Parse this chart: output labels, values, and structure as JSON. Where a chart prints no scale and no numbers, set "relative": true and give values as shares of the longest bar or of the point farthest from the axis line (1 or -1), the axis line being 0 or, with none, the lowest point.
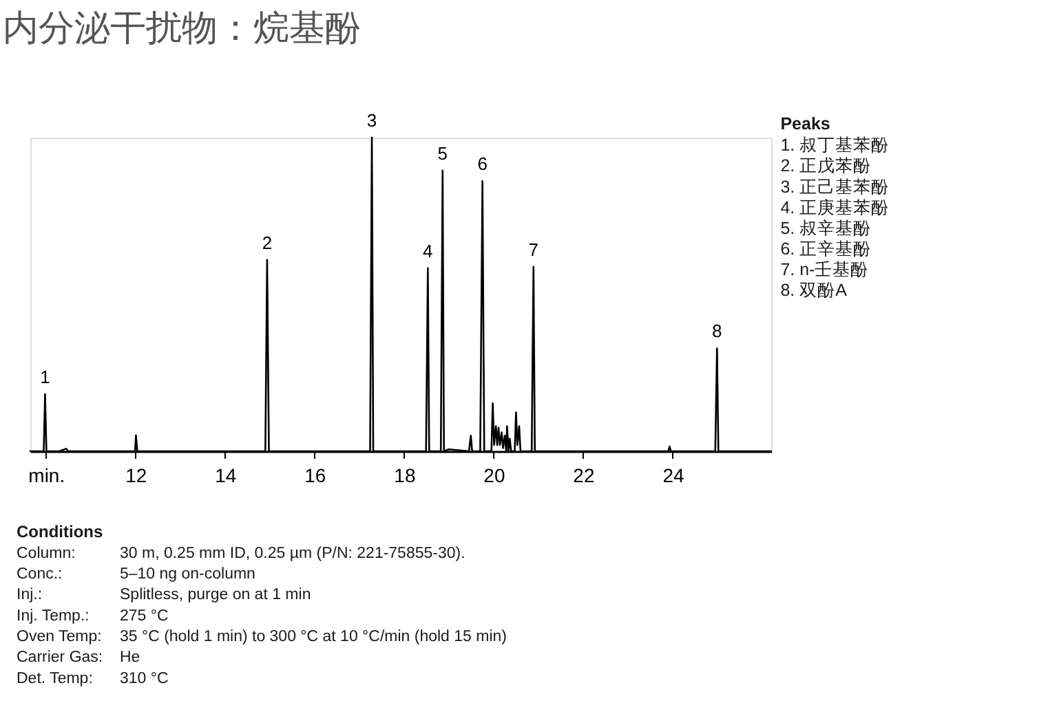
{
  "chart_data": {
    "type": "line",
    "title": "内分泌干扰物：烷基酚",
    "relative": true,
    "color": "#000000",
    "x": [
      9.65,
      9.95,
      9.98,
      10.01,
      10.3,
      10.45,
      10.5,
      11.99,
      12.01,
      12.04,
      14.9,
      14.94,
      14.98,
      17.24,
      17.28,
      17.31,
      18.49,
      18.53,
      18.56,
      18.82,
      18.86,
      18.89,
      19.0,
      19.45,
      19.49,
      19.52,
      19.7,
      19.75,
      19.79,
      19.95,
      19.98,
      20.01,
      20.05,
      20.08,
      20.11,
      20.14,
      20.18,
      20.21,
      20.25,
      20.28,
      20.3,
      20.33,
      20.36,
      20.39,
      20.47,
      20.5,
      20.53,
      20.57,
      20.6,
      20.85,
      20.89,
      20.92,
      23.9,
      23.93,
      23.96,
      24.95,
      24.99,
      25.02,
      26.2
    ],
    "values": [
      0,
      0,
      0.182,
      0,
      0,
      0.008,
      0,
      0,
      0.051,
      0,
      0,
      0.61,
      0,
      0,
      1.0,
      0,
      0,
      0.584,
      0,
      0,
      0.895,
      0,
      0.006,
      0,
      0.05,
      0,
      0,
      0.861,
      0,
      0,
      0.153,
      0.02,
      0.08,
      0.02,
      0.075,
      0.02,
      0.06,
      0.01,
      0.05,
      0,
      0.08,
      0,
      0.04,
      0,
      0,
      0.124,
      0.02,
      0.08,
      0,
      0,
      0.588,
      0,
      0,
      0.015,
      0,
      0,
      0.328,
      0,
      0
    ],
    "xlim": [
      9.65,
      26.2
    ],
    "xticks": [
      {
        "value": 10,
        "label": "min."
      },
      12,
      14,
      16,
      18,
      20,
      22,
      24
    ],
    "annotations": [
      {
        "text": "1",
        "x": 9.98,
        "y": 0.182
      },
      {
        "text": "2",
        "x": 14.94,
        "y": 0.61
      },
      {
        "text": "3",
        "x": 17.28,
        "y": 1.0
      },
      {
        "text": "4",
        "x": 18.53,
        "y": 0.584
      },
      {
        "text": "5",
        "x": 18.86,
        "y": 0.895
      },
      {
        "text": "6",
        "x": 19.75,
        "y": 0.861
      },
      {
        "text": "7",
        "x": 20.89,
        "y": 0.588
      },
      {
        "text": "8",
        "x": 24.99,
        "y": 0.328
      },
      "Peaks",
      "1. 叔丁基苯酚\n2. 正戊苯酚\n3. 正己基苯酚\n4. 正庚基苯酚\n5. 叔辛基酚\n6. 正辛基酚\n7. n-壬基酚\n8. 双酚A",
      "Conditions",
      "Column: 30 m, 0.25 mm ID, 0.25 µm (P/N: 221-75855-30).\nConc.: 5–10 ng on-column\nInj.: Splitless, purge on at 1 min\nInj. Temp.: 275 °C\nOven Temp: 35 °C (hold 1 min) to 300 °C at 10 °C/min (hold 15 min)\nCarrier Gas: He\nDet. Temp: 310 °C"
    ]
  }
}
